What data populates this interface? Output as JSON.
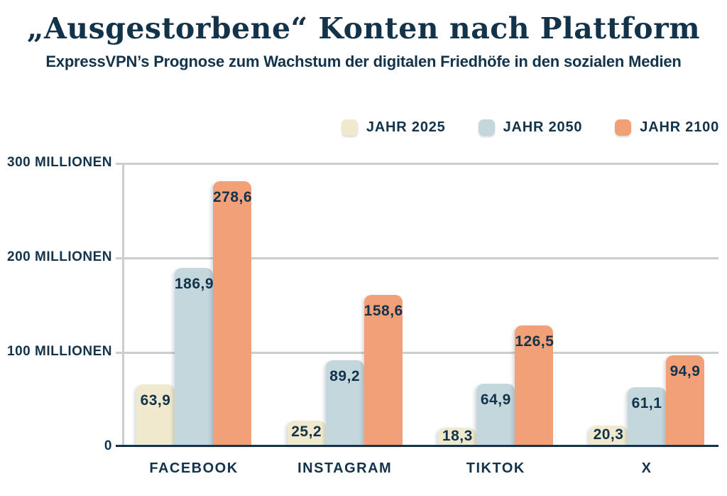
{
  "header": {
    "title": "„Ausgestorbene“ Konten nach Plattform",
    "subtitle": "ExpressVPN’s Prognose zum Wachstum der digitalen Friedhöfe in den sozialen Medien"
  },
  "legend": [
    {
      "label": "JAHR 2025",
      "color": "#F0E9CE"
    },
    {
      "label": "JAHR 2050",
      "color": "#C3D7DC"
    },
    {
      "label": "JAHR 2100",
      "color": "#F2A077"
    }
  ],
  "chart_data": {
    "type": "bar",
    "categories": [
      "FACEBOOK",
      "INSTAGRAM",
      "TIKTOK",
      "X"
    ],
    "series": [
      {
        "name": "JAHR 2025",
        "color": "#F0E9CE",
        "values": [
          63.9,
          25.2,
          18.3,
          20.3
        ],
        "labels": [
          "63,9",
          "25,2",
          "18,3",
          "20,3"
        ]
      },
      {
        "name": "JAHR 2050",
        "color": "#C3D7DC",
        "values": [
          186.9,
          89.2,
          64.9,
          61.1
        ],
        "labels": [
          "186,9",
          "89,2",
          "64,9",
          "61,1"
        ]
      },
      {
        "name": "JAHR 2100",
        "color": "#F2A077",
        "values": [
          278.6,
          158.6,
          126.5,
          94.9
        ],
        "labels": [
          "278,6",
          "158,6",
          "126,5",
          "94,9"
        ]
      }
    ],
    "y_ticks": [
      {
        "value": 0,
        "label": "0"
      },
      {
        "value": 100,
        "label": "100 MILLIONEN"
      },
      {
        "value": 200,
        "label": "200 MILLIONEN"
      },
      {
        "value": 300,
        "label": "300 MILLIONEN"
      }
    ],
    "ylim": [
      0,
      300
    ],
    "grid": true,
    "legend_position": "top-right",
    "title": "„Ausgestorbene“ Konten nach Plattform",
    "xlabel": "",
    "ylabel": ""
  },
  "colors": {
    "text_navy": "#13334B",
    "gridline": "#CBCFCB",
    "baseline": "#13334B",
    "background": "#FFFFFF"
  }
}
